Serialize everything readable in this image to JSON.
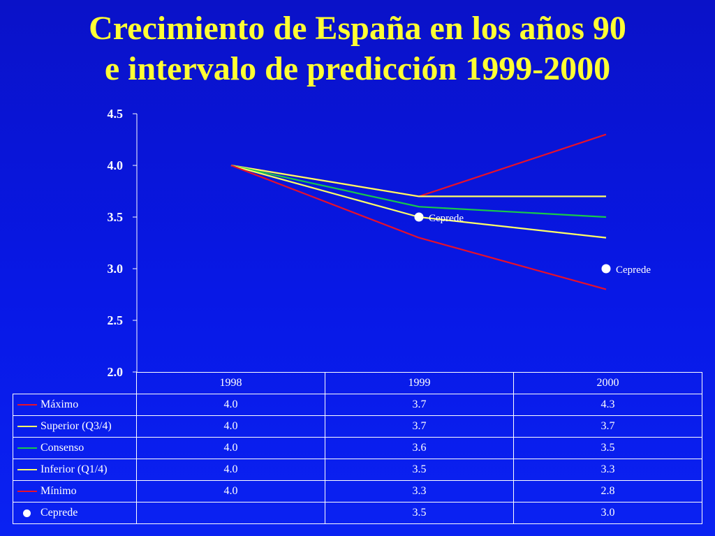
{
  "title": {
    "line1": "Crecimiento de España en los años 90",
    "line2": "e intervalo de predicción 1999-2000"
  },
  "chart_data": {
    "type": "line",
    "x": [
      "1998",
      "1999",
      "2000"
    ],
    "ylim": [
      2.0,
      4.5
    ],
    "yticks": [
      "2.0",
      "2.5",
      "3.0",
      "3.5",
      "4.0",
      "4.5"
    ],
    "series": [
      {
        "name": "Máximo",
        "values": [
          4.0,
          3.7,
          4.3
        ],
        "color": "#e8102a"
      },
      {
        "name": "Superior (Q3/4)",
        "values": [
          4.0,
          3.7,
          3.7
        ],
        "color": "#ffff66"
      },
      {
        "name": "Consenso",
        "values": [
          4.0,
          3.6,
          3.5
        ],
        "color": "#19c84a"
      },
      {
        "name": "Inferior (Q1/4)",
        "values": [
          4.0,
          3.5,
          3.3
        ],
        "color": "#ffff66"
      },
      {
        "name": "Mínimo",
        "values": [
          4.0,
          3.3,
          2.8
        ],
        "color": "#e8102a"
      }
    ],
    "points": {
      "name": "Ceprede",
      "values": [
        null,
        3.5,
        3.0
      ],
      "labels": [
        null,
        "Ceprede",
        "Ceprede"
      ],
      "color": "#ffffff"
    },
    "table": {
      "headers": [
        "1998",
        "1999",
        "2000"
      ],
      "rows": [
        {
          "label": "Máximo",
          "marker": "line",
          "color": "#e8102a",
          "cells": [
            "4.0",
            "3.7",
            "4.3"
          ]
        },
        {
          "label": "Superior (Q3/4)",
          "marker": "line",
          "color": "#ffff66",
          "cells": [
            "4.0",
            "3.7",
            "3.7"
          ]
        },
        {
          "label": "Consenso",
          "marker": "line",
          "color": "#19c84a",
          "cells": [
            "4.0",
            "3.6",
            "3.5"
          ]
        },
        {
          "label": "Inferior (Q1/4)",
          "marker": "line",
          "color": "#ffff66",
          "cells": [
            "4.0",
            "3.5",
            "3.3"
          ]
        },
        {
          "label": "Mínimo",
          "marker": "line",
          "color": "#e8102a",
          "cells": [
            "4.0",
            "3.3",
            "2.8"
          ]
        },
        {
          "label": "Ceprede",
          "marker": "dot",
          "color": "#ffffff",
          "cells": [
            "",
            "3.5",
            "3.0"
          ]
        }
      ]
    }
  }
}
